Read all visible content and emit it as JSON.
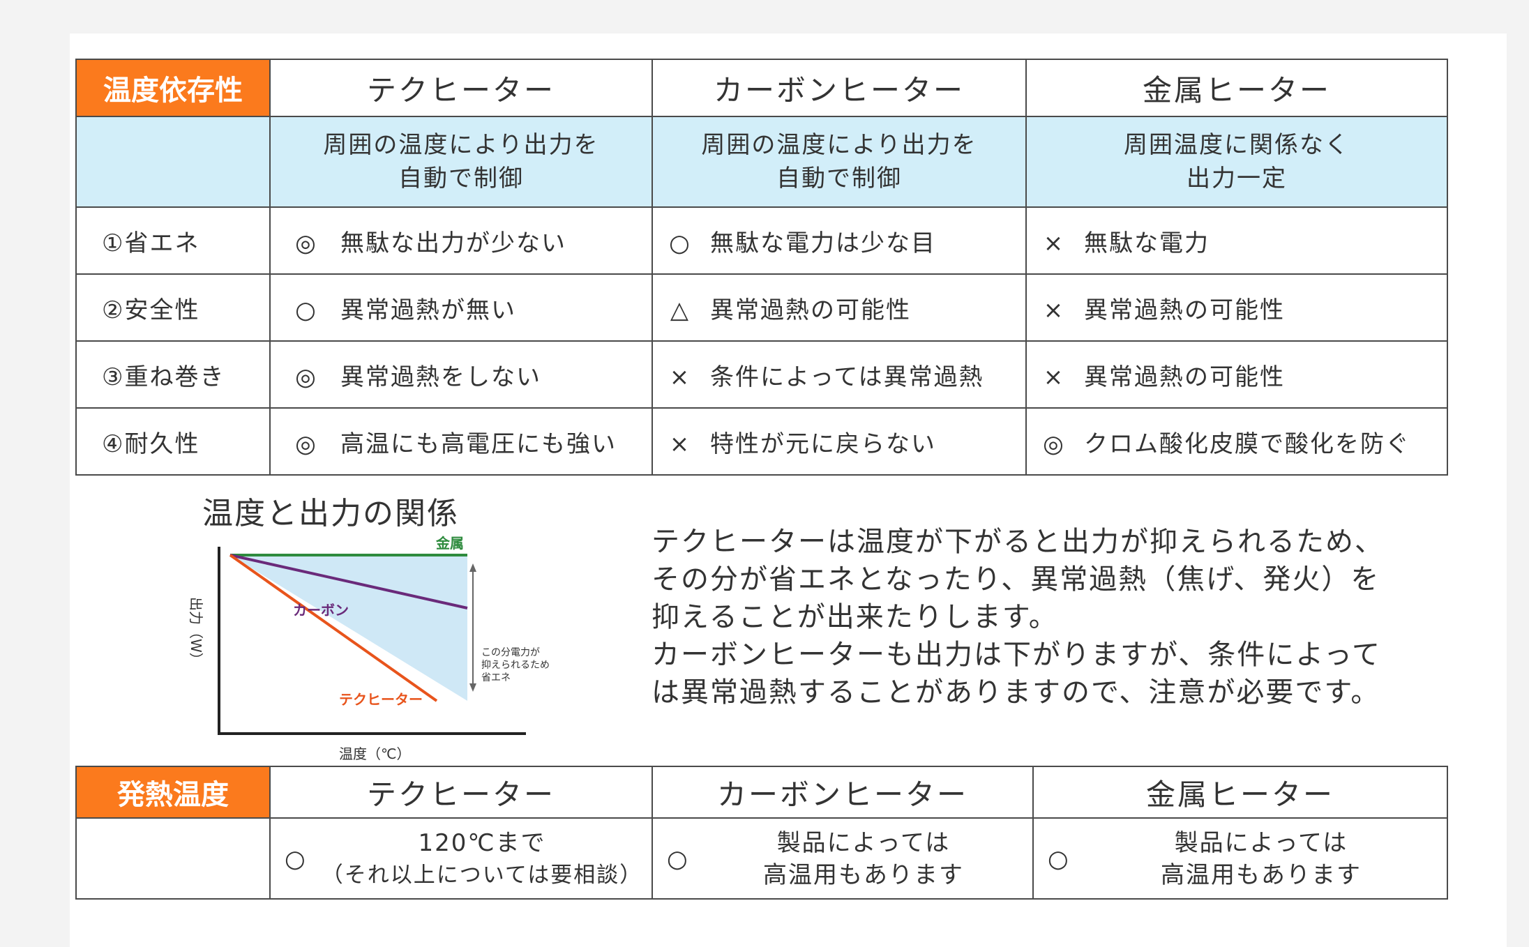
{
  "table1": {
    "tag": "温度依存性",
    "headers": [
      "テクヒーター",
      "カーボンヒーター",
      "金属ヒーター"
    ],
    "descriptions": [
      [
        "周囲の温度により出力を",
        "自動で制御"
      ],
      [
        "周囲の温度により出力を",
        "自動で制御"
      ],
      [
        "周囲温度に関係なく",
        "出力一定"
      ]
    ],
    "rows": [
      {
        "label": "①省エネ",
        "cells": [
          {
            "mark": "◎",
            "text": "無駄な出力が少ない"
          },
          {
            "mark": "○",
            "text": "無駄な電力は少な目"
          },
          {
            "mark": "×",
            "text": "無駄な電力"
          }
        ]
      },
      {
        "label": "②安全性",
        "cells": [
          {
            "mark": "○",
            "text": "異常過熱が無い"
          },
          {
            "mark": "△",
            "text": "異常過熱の可能性"
          },
          {
            "mark": "×",
            "text": "異常過熱の可能性"
          }
        ]
      },
      {
        "label": "③重ね巻き",
        "cells": [
          {
            "mark": "◎",
            "text": "異常過熱をしない"
          },
          {
            "mark": "×",
            "text": "条件によっては異常過熱"
          },
          {
            "mark": "×",
            "text": "異常過熱の可能性"
          }
        ]
      },
      {
        "label": "④耐久性",
        "cells": [
          {
            "mark": "◎",
            "text": "高温にも高電圧にも強い"
          },
          {
            "mark": "×",
            "text": "特性が元に戻らない"
          },
          {
            "mark": "◎",
            "text": "クロム酸化皮膜で酸化を防ぐ"
          }
        ]
      }
    ]
  },
  "chart": {
    "title": "温度と出力の関係",
    "ylabel": "出力（W）",
    "xlabel": "温度（℃）",
    "series_labels": {
      "metal": "金属",
      "carbon": "カーボン",
      "tech": "テクヒーター"
    },
    "annotation": [
      "この分電力が",
      "抑えられるため",
      "省エネ"
    ],
    "colors": {
      "metal": "#2e8b3e",
      "carbon": "#6a2a7a",
      "tech": "#e8541c",
      "fill": "#cfe8f6"
    }
  },
  "paragraph": [
    "テクヒーターは温度が下がると出力が抑えられるため、",
    "その分が省エネとなったり、異常過熱（焦げ、発火）を",
    "抑えることが出来たりします。",
    "カーボンヒーターも出力は下がりますが、条件によって",
    "は異常過熱することがありますので、注意が必要です。"
  ],
  "table2": {
    "tag": "発熱温度",
    "headers": [
      "テクヒーター",
      "カーボンヒーター",
      "金属ヒーター"
    ],
    "cells": [
      {
        "mark": "○",
        "line1": "120℃まで",
        "line2": "（それ以上については要相談）"
      },
      {
        "mark": "○",
        "line1": "製品によっては",
        "line2": "高温用もあります"
      },
      {
        "mark": "○",
        "line1": "製品によっては",
        "line2": "高温用もあります"
      }
    ]
  },
  "accent_color": "#fb7a1d",
  "description_bg": "#d2eef9"
}
